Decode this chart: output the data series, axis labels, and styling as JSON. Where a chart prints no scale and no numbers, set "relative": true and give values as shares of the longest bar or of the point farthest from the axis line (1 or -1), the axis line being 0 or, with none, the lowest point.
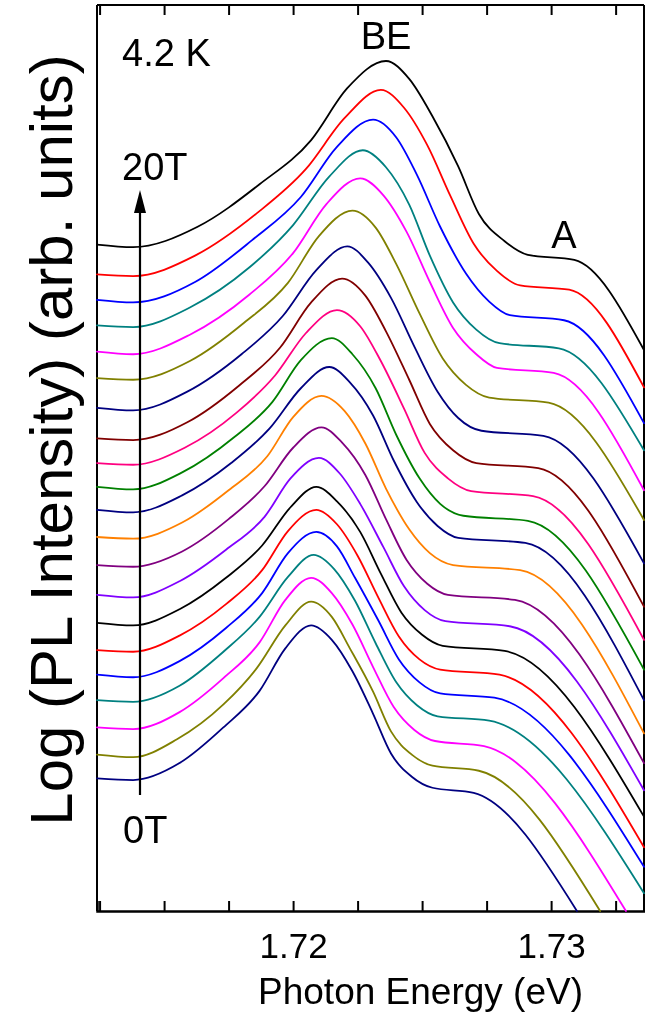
{
  "chart_data": {
    "type": "line",
    "relative": true,
    "xlabel": "Photon Energy (eV)",
    "ylabel": "Log (PL Intensity) (arb. units)",
    "xlim": [
      1.7124,
      1.7336
    ],
    "xticks": [
      {
        "value": 1.7125,
        "label": null
      },
      {
        "value": 1.715,
        "label": null
      },
      {
        "value": 1.7175,
        "label": null
      },
      1.72,
      {
        "value": 1.7225,
        "label": null
      },
      {
        "value": 1.725,
        "label": null
      },
      {
        "value": 1.7275,
        "label": null
      },
      1.73,
      {
        "value": 1.7325,
        "label": null
      }
    ],
    "annotations": [
      "4.2 K",
      {
        "text": "BE",
        "x": 1.7236,
        "y": 1
      },
      "20T",
      "0T",
      {
        "text": "A",
        "x": 1.7305,
        "y": 0.766
      }
    ],
    "series": [
      {
        "color": "#000080",
        "x": [
          1.7124,
          1.7138,
          1.7156,
          1.7173,
          1.7187,
          1.7197,
          1.7207,
          1.7215,
          1.7223,
          1.7231,
          1.7238,
          1.7246,
          1.7254,
          1.727,
          1.731
        ],
        "values": [
          0.156,
          0.154,
          0.174,
          0.216,
          0.259,
          0.309,
          0.336,
          0.319,
          0.282,
          0.232,
          0.185,
          0.158,
          0.145,
          0.139,
          0
        ]
      },
      {
        "color": "#808000",
        "x": [
          1.7124,
          1.7138,
          1.7155,
          1.7173,
          1.7186,
          1.7197,
          1.7207,
          1.7215,
          1.7222,
          1.7231,
          1.7238,
          1.7246,
          1.7254,
          1.7272,
          1.7319
        ],
        "values": [
          0.184,
          0.181,
          0.202,
          0.243,
          0.286,
          0.336,
          0.364,
          0.346,
          0.309,
          0.258,
          0.211,
          0.184,
          0.171,
          0.165,
          0
        ]
      },
      {
        "color": "#ff00ff",
        "x": [
          1.7124,
          1.7138,
          1.7156,
          1.7173,
          1.7187,
          1.7197,
          1.7207,
          1.7215,
          1.7223,
          1.7231,
          1.7239,
          1.7247,
          1.7255,
          1.7274,
          1.7329
        ],
        "values": [
          0.216,
          0.214,
          0.234,
          0.274,
          0.316,
          0.366,
          0.392,
          0.374,
          0.337,
          0.287,
          0.24,
          0.213,
          0.2,
          0.194,
          0
        ]
      },
      {
        "color": "#008080",
        "x": [
          1.7124,
          1.7138,
          1.7156,
          1.7173,
          1.7187,
          1.7198,
          1.7208,
          1.7216,
          1.7224,
          1.7232,
          1.724,
          1.7248,
          1.7256,
          1.7276,
          1.7336
        ],
        "values": [
          0.248,
          0.246,
          0.265,
          0.305,
          0.346,
          0.393,
          0.419,
          0.402,
          0.365,
          0.315,
          0.269,
          0.242,
          0.229,
          0.224,
          0.021
        ]
      },
      {
        "color": "#0000ff",
        "x": [
          1.7124,
          1.7138,
          1.7156,
          1.7174,
          1.7188,
          1.7198,
          1.7209,
          1.7217,
          1.7224,
          1.7233,
          1.7241,
          1.7249,
          1.7257,
          1.7278,
          1.7336
        ],
        "values": [
          0.278,
          0.275,
          0.294,
          0.333,
          0.374,
          0.421,
          0.446,
          0.429,
          0.392,
          0.342,
          0.296,
          0.269,
          0.256,
          0.251,
          0.052
        ]
      },
      {
        "color": "#ff0000",
        "x": [
          1.7124,
          1.7138,
          1.7156,
          1.7174,
          1.7188,
          1.7198,
          1.7209,
          1.7217,
          1.7225,
          1.7233,
          1.7241,
          1.7249,
          1.7257,
          1.728,
          1.7336
        ],
        "values": [
          0.307,
          0.305,
          0.324,
          0.361,
          0.401,
          0.447,
          0.472,
          0.455,
          0.418,
          0.369,
          0.323,
          0.296,
          0.284,
          0.278,
          0.075
        ]
      },
      {
        "color": "#000000",
        "x": [
          1.7124,
          1.7138,
          1.7156,
          1.7174,
          1.7188,
          1.7199,
          1.7209,
          1.7217,
          1.7226,
          1.7234,
          1.7242,
          1.725,
          1.7258,
          1.7282,
          1.7336
        ],
        "values": [
          0.339,
          0.336,
          0.355,
          0.392,
          0.43,
          0.475,
          0.499,
          0.482,
          0.446,
          0.397,
          0.351,
          0.325,
          0.312,
          0.306,
          0.111
        ]
      },
      {
        "color": "#8000ff",
        "x": [
          1.7124,
          1.7138,
          1.7156,
          1.7174,
          1.7189,
          1.7199,
          1.721,
          1.7218,
          1.7226,
          1.7235,
          1.7243,
          1.7251,
          1.7259,
          1.7284,
          1.7336
        ],
        "values": [
          0.372,
          0.369,
          0.388,
          0.425,
          0.464,
          0.509,
          0.533,
          0.515,
          0.479,
          0.428,
          0.382,
          0.354,
          0.341,
          0.335,
          0.142
        ]
      },
      {
        "color": "#800080",
        "x": [
          1.7124,
          1.7138,
          1.7157,
          1.7175,
          1.7189,
          1.72,
          1.7211,
          1.7219,
          1.7228,
          1.7236,
          1.7244,
          1.7252,
          1.726,
          1.7286,
          1.7336
        ],
        "values": [
          0.407,
          0.405,
          0.423,
          0.461,
          0.5,
          0.545,
          0.569,
          0.551,
          0.513,
          0.461,
          0.413,
          0.385,
          0.372,
          0.366,
          0.174
        ]
      },
      {
        "color": "#ff8000",
        "x": [
          1.7124,
          1.7138,
          1.7157,
          1.7175,
          1.719,
          1.72,
          1.7211,
          1.722,
          1.7228,
          1.7236,
          1.7245,
          1.7253,
          1.7262,
          1.7288,
          1.7336
        ],
        "values": [
          0.44,
          0.438,
          0.457,
          0.495,
          0.535,
          0.581,
          0.606,
          0.588,
          0.55,
          0.497,
          0.449,
          0.421,
          0.407,
          0.401,
          0.209
        ]
      },
      {
        "color": "#000080",
        "x": [
          1.7124,
          1.7138,
          1.7157,
          1.7176,
          1.7191,
          1.7203,
          1.7214,
          1.7222,
          1.7231,
          1.7239,
          1.7248,
          1.7256,
          1.7264,
          1.729,
          1.7336
        ],
        "values": [
          0.472,
          0.469,
          0.489,
          0.527,
          0.568,
          0.615,
          0.64,
          0.622,
          0.583,
          0.53,
          0.481,
          0.453,
          0.439,
          0.433,
          0.248
        ]
      },
      {
        "color": "#008000",
        "x": [
          1.7124,
          1.7138,
          1.7157,
          1.7177,
          1.7192,
          1.7203,
          1.7215,
          1.7223,
          1.7232,
          1.724,
          1.7249,
          1.7257,
          1.7266,
          1.7291,
          1.7336
        ],
        "values": [
          0.499,
          0.496,
          0.516,
          0.557,
          0.599,
          0.648,
          0.674,
          0.655,
          0.615,
          0.56,
          0.509,
          0.479,
          0.465,
          0.459,
          0.284
        ]
      },
      {
        "color": "#ff0080",
        "x": [
          1.7124,
          1.7138,
          1.7158,
          1.7178,
          1.7193,
          1.7205,
          1.7217,
          1.7226,
          1.7234,
          1.7243,
          1.7251,
          1.726,
          1.7269,
          1.7293,
          1.7336
        ],
        "values": [
          0.527,
          0.525,
          0.545,
          0.586,
          0.63,
          0.68,
          0.707,
          0.688,
          0.647,
          0.591,
          0.539,
          0.509,
          0.494,
          0.488,
          0.319
        ]
      },
      {
        "color": "#800000",
        "x": [
          1.7124,
          1.7138,
          1.7159,
          1.7179,
          1.7195,
          1.7207,
          1.7219,
          1.7228,
          1.7236,
          1.7245,
          1.7253,
          1.7262,
          1.7271,
          1.7295,
          1.7336
        ],
        "values": [
          0.556,
          0.554,
          0.575,
          0.618,
          0.663,
          0.716,
          0.744,
          0.724,
          0.682,
          0.625,
          0.573,
          0.542,
          0.527,
          0.521,
          0.358
        ]
      },
      {
        "color": "#000080",
        "x": [
          1.7124,
          1.7138,
          1.7159,
          1.718,
          1.7196,
          1.7209,
          1.7221,
          1.7229,
          1.7238,
          1.7247,
          1.7256,
          1.7264,
          1.7273,
          1.7297,
          1.7336
        ],
        "values": [
          0.592,
          0.589,
          0.611,
          0.655,
          0.7,
          0.754,
          0.782,
          0.763,
          0.721,
          0.664,
          0.611,
          0.58,
          0.565,
          0.559,
          0.409
        ]
      },
      {
        "color": "#808000",
        "x": [
          1.7124,
          1.7138,
          1.716,
          1.7181,
          1.7198,
          1.721,
          1.7223,
          1.7232,
          1.724,
          1.7249,
          1.7258,
          1.7267,
          1.7276,
          1.7299,
          1.7336
        ],
        "values": [
          0.627,
          0.625,
          0.647,
          0.692,
          0.739,
          0.794,
          0.824,
          0.804,
          0.761,
          0.703,
          0.65,
          0.619,
          0.604,
          0.598,
          0.46
        ]
      },
      {
        "color": "#ff00ff",
        "x": [
          1.7124,
          1.7138,
          1.716,
          1.7183,
          1.72,
          1.7213,
          1.7226,
          1.7235,
          1.7244,
          1.7253,
          1.7262,
          1.7271,
          1.7279,
          1.7301,
          1.7336
        ],
        "values": [
          0.658,
          0.655,
          0.678,
          0.725,
          0.774,
          0.832,
          0.862,
          0.842,
          0.799,
          0.74,
          0.686,
          0.655,
          0.639,
          0.633,
          0.495
        ]
      },
      {
        "color": "#008080",
        "x": [
          1.7124,
          1.7138,
          1.716,
          1.7183,
          1.72,
          1.7214,
          1.7227,
          1.7236,
          1.7245,
          1.7253,
          1.7262,
          1.7271,
          1.728,
          1.7303,
          1.7336
        ],
        "values": [
          0.689,
          0.687,
          0.71,
          0.757,
          0.807,
          0.864,
          0.895,
          0.875,
          0.831,
          0.771,
          0.716,
          0.684,
          0.668,
          0.662,
          0.542
        ]
      },
      {
        "color": "#0000ff",
        "x": [
          1.7124,
          1.7138,
          1.7162,
          1.7184,
          1.7203,
          1.7217,
          1.7231,
          1.724,
          1.7248,
          1.7257,
          1.7267,
          1.7276,
          1.7284,
          1.7305,
          1.7336
        ],
        "values": [
          0.719,
          0.716,
          0.74,
          0.789,
          0.84,
          0.899,
          0.931,
          0.91,
          0.866,
          0.805,
          0.75,
          0.717,
          0.701,
          0.695,
          0.574
        ]
      },
      {
        "color": "#ff0000",
        "x": [
          1.7124,
          1.7138,
          1.7162,
          1.7186,
          1.7205,
          1.722,
          1.7234,
          1.7243,
          1.7252,
          1.7261,
          1.727,
          1.7279,
          1.7288,
          1.7307,
          1.7336
        ],
        "values": [
          0.749,
          0.747,
          0.771,
          0.821,
          0.873,
          0.933,
          0.966,
          0.945,
          0.901,
          0.841,
          0.785,
          0.753,
          0.736,
          0.731,
          0.616
        ]
      },
      {
        "color": "#000000",
        "x": [
          1.7124,
          1.7138,
          1.7163,
          1.7187,
          1.7207,
          1.7221,
          1.7236,
          1.7245,
          1.7254,
          1.7264,
          1.7272,
          1.7282,
          1.7291,
          1.7309,
          1.7336
        ],
        "values": [
          0.784,
          0.781,
          0.805,
          0.855,
          0.907,
          0.968,
          1,
          0.979,
          0.935,
          0.876,
          0.82,
          0.788,
          0.772,
          0.766,
          0.66
        ]
      }
    ]
  }
}
